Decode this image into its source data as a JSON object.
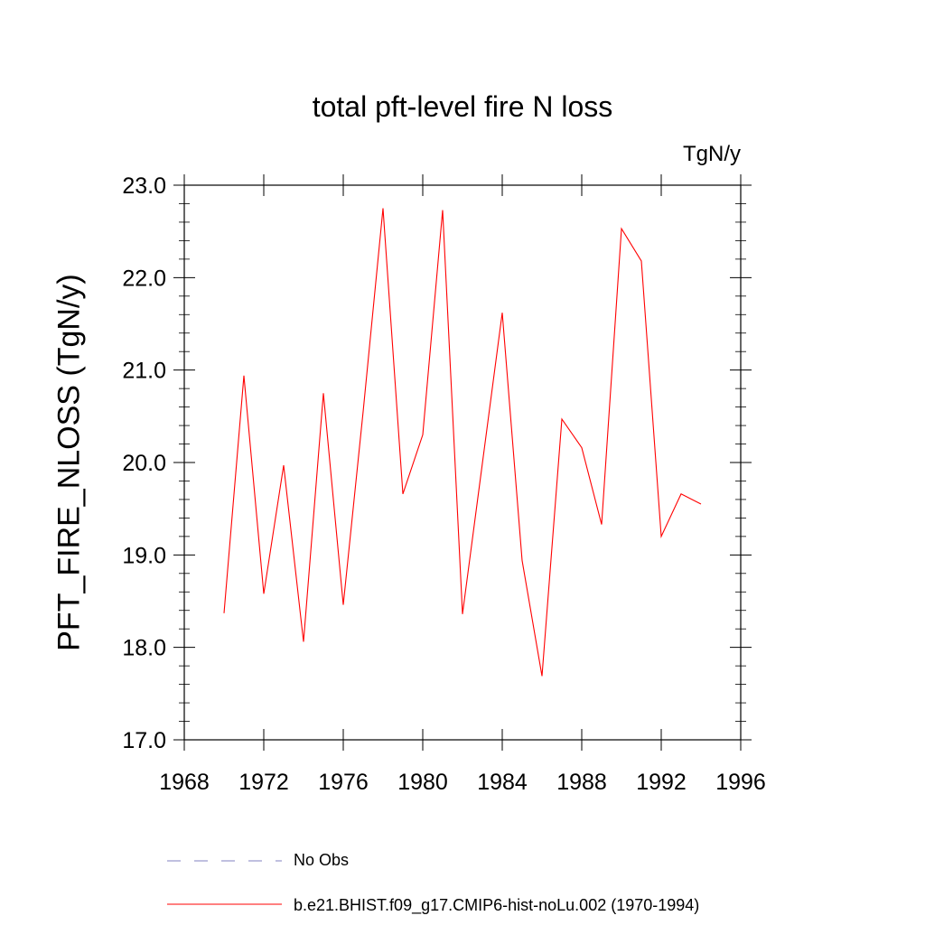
{
  "chart_data": {
    "type": "line",
    "title": "total pft-level fire N loss",
    "units": "TgN/y",
    "ylabel": "PFT_FIRE_NLOSS  (TgN/y)",
    "xlim": [
      1968,
      1996
    ],
    "ylim": [
      17.0,
      23.0
    ],
    "x_ticks": [
      1968,
      1972,
      1976,
      1980,
      1984,
      1988,
      1992,
      1996
    ],
    "x_tick_labels": [
      "1968",
      "1972",
      "1976",
      "1980",
      "1984",
      "1988",
      "1992",
      "1996"
    ],
    "y_ticks": [
      17,
      18,
      19,
      20,
      21,
      22,
      23
    ],
    "y_tick_labels": [
      "17.0",
      "18.0",
      "19.0",
      "20.0",
      "21.0",
      "22.0",
      "23.0"
    ],
    "grid": false,
    "legend_position": "bottom",
    "series": [
      {
        "name": "b.e21.BHIST.f09_g17.CMIP6-hist-noLu.002 (1970-1994)",
        "color": "#ff0000",
        "style": "solid",
        "x": [
          1970,
          1971,
          1972,
          1973,
          1974,
          1975,
          1976,
          1977,
          1978,
          1979,
          1980,
          1981,
          1982,
          1983,
          1984,
          1985,
          1986,
          1987,
          1988,
          1989,
          1990,
          1991,
          1992,
          1993,
          1994
        ],
        "y": [
          18.37,
          20.94,
          18.58,
          19.97,
          18.06,
          20.75,
          18.46,
          20.55,
          22.75,
          19.66,
          20.3,
          22.73,
          18.36,
          19.99,
          21.62,
          18.94,
          17.69,
          20.47,
          20.16,
          19.33,
          22.53,
          22.18,
          19.2,
          19.66,
          19.55
        ]
      }
    ],
    "legend": [
      {
        "label": "No Obs",
        "color": "#8080c0",
        "style": "dashed"
      },
      {
        "label": "b.e21.BHIST.f09_g17.CMIP6-hist-noLu.002 (1970-1994)",
        "color": "#ff0000",
        "style": "solid"
      }
    ]
  }
}
